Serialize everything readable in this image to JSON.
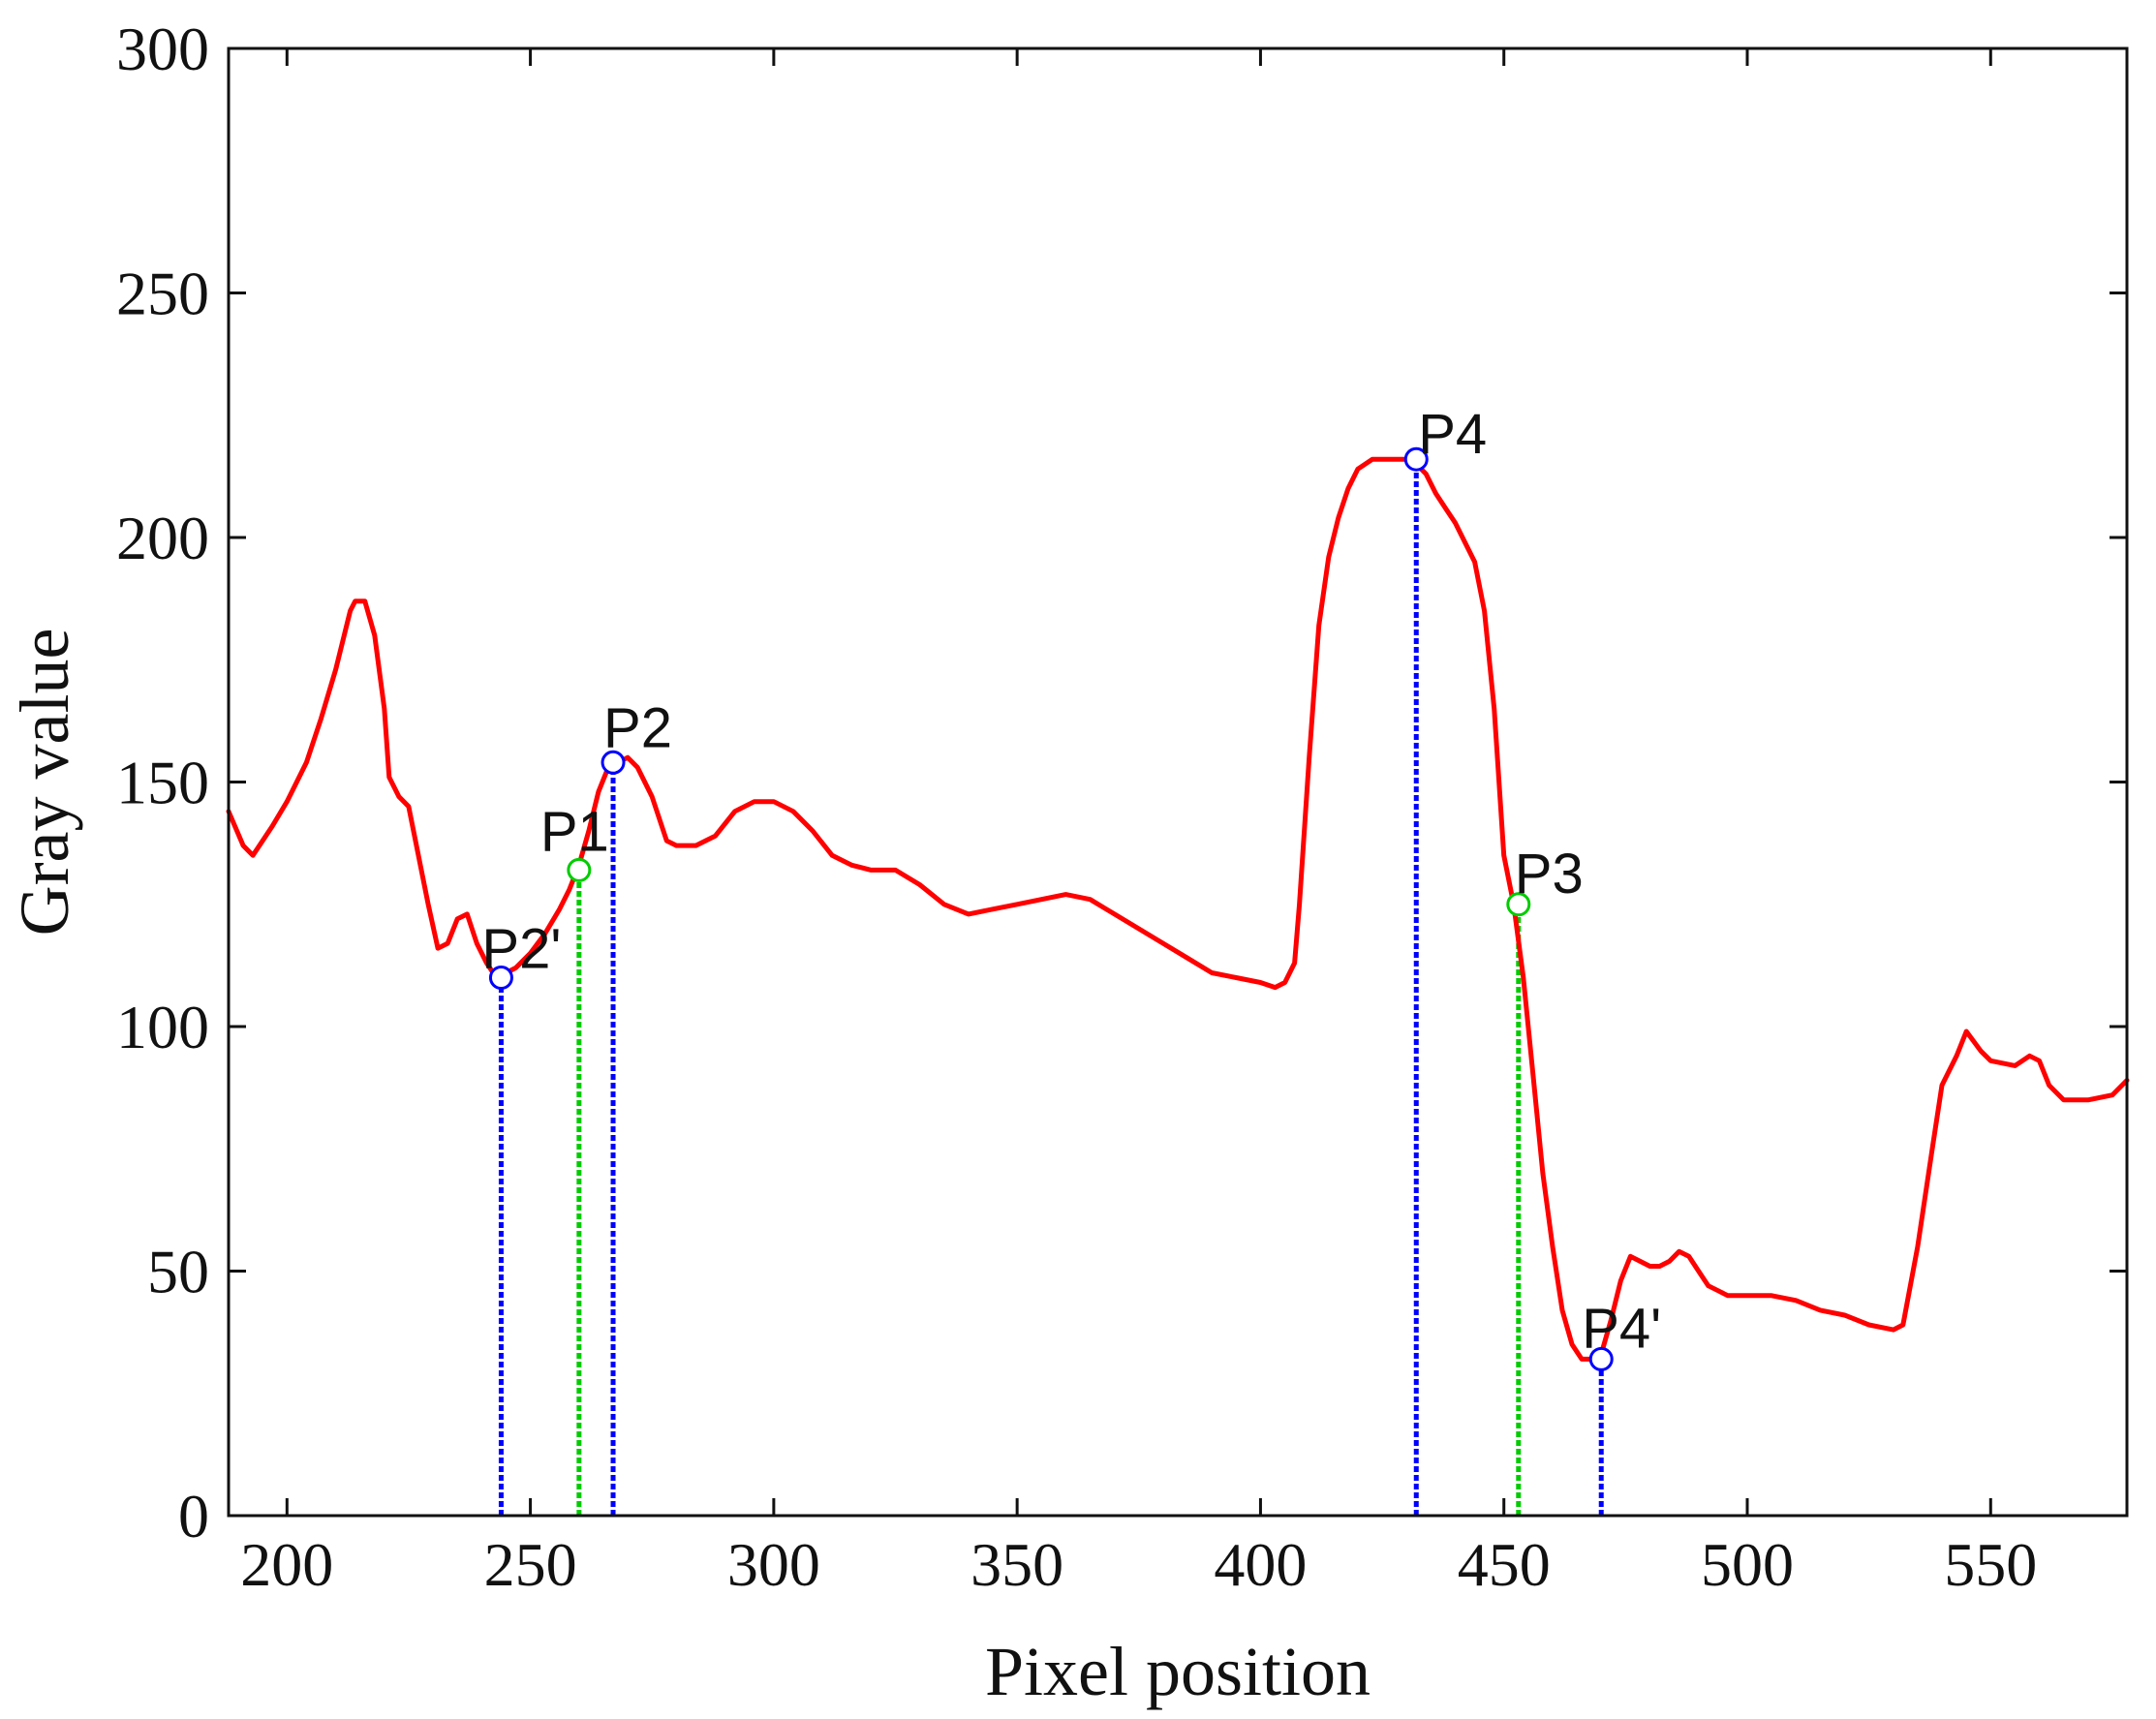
{
  "chart_data": {
    "type": "line",
    "xlabel": "Pixel position",
    "ylabel": "Gray value",
    "xlim": [
      188,
      578
    ],
    "ylim": [
      0,
      300
    ],
    "xticks": [
      200,
      250,
      300,
      350,
      400,
      450,
      500,
      550
    ],
    "yticks": [
      0,
      50,
      100,
      150,
      200,
      250,
      300
    ],
    "grid": false,
    "colors": {
      "line": "#ff0000",
      "blue_marker": "#0000ff",
      "green_marker": "#00cc00",
      "axis": "#111111"
    },
    "series": [
      {
        "color": "#ff0000",
        "x": [
          188,
          191,
          193,
          197,
          200,
          204,
          207,
          210,
          213,
          214,
          216,
          218,
          220,
          221,
          223,
          225,
          227,
          229,
          231,
          233,
          235,
          237,
          239,
          241,
          243,
          245,
          247,
          250,
          253,
          256,
          258,
          260,
          262,
          264,
          266,
          268,
          270,
          272,
          275,
          278,
          280,
          284,
          288,
          292,
          296,
          300,
          304,
          308,
          312,
          316,
          320,
          325,
          330,
          335,
          340,
          345,
          350,
          355,
          360,
          365,
          370,
          375,
          380,
          385,
          390,
          395,
          400,
          403,
          405,
          407,
          408,
          410,
          412,
          414,
          416,
          418,
          420,
          423,
          426,
          428,
          430,
          432,
          434,
          436,
          438,
          440,
          442,
          444,
          446,
          448,
          450,
          452,
          454,
          456,
          458,
          460,
          462,
          464,
          466,
          468,
          470,
          472,
          474,
          476,
          478,
          480,
          482,
          484,
          486,
          488,
          490,
          492,
          494,
          496,
          500,
          505,
          510,
          515,
          520,
          525,
          530,
          532,
          535,
          538,
          540,
          543,
          545,
          548,
          550,
          555,
          558,
          560,
          562,
          565,
          570,
          575,
          578
        ],
        "y": [
          144,
          137,
          135,
          141,
          146,
          154,
          163,
          173,
          185,
          187,
          187,
          180,
          165,
          151,
          147,
          145,
          135,
          125,
          116,
          117,
          122,
          123,
          117,
          113,
          110,
          111,
          112,
          115,
          119,
          124,
          128,
          133,
          140,
          148,
          153,
          154,
          155,
          153,
          147,
          138,
          137,
          137,
          139,
          144,
          146,
          146,
          144,
          140,
          135,
          133,
          132,
          132,
          129,
          125,
          123,
          124,
          125,
          126,
          127,
          126,
          123,
          120,
          117,
          114,
          111,
          110,
          109,
          108,
          109,
          113,
          125,
          155,
          182,
          196,
          204,
          210,
          214,
          216,
          216,
          216,
          216,
          215,
          213,
          209,
          206,
          203,
          199,
          195,
          185,
          165,
          135,
          125,
          110,
          90,
          70,
          55,
          42,
          35,
          32,
          32,
          33,
          40,
          48,
          53,
          52,
          51,
          51,
          52,
          54,
          53,
          50,
          47,
          46,
          45,
          45,
          45,
          44,
          42,
          41,
          39,
          38,
          39,
          55,
          75,
          88,
          94,
          99,
          95,
          93,
          92,
          94,
          93,
          88,
          85,
          85,
          86,
          89
        ]
      }
    ],
    "markers": [
      {
        "label": "P2'",
        "x": 244,
        "y": 110,
        "color": "blue"
      },
      {
        "label": "P1",
        "x": 260,
        "y": 132,
        "color": "green"
      },
      {
        "label": "P2",
        "x": 267,
        "y": 154,
        "color": "blue"
      },
      {
        "label": "P4",
        "x": 432,
        "y": 216,
        "color": "blue"
      },
      {
        "label": "P3",
        "x": 453,
        "y": 125,
        "color": "green"
      },
      {
        "label": "P4'",
        "x": 470,
        "y": 32,
        "color": "blue"
      }
    ]
  }
}
